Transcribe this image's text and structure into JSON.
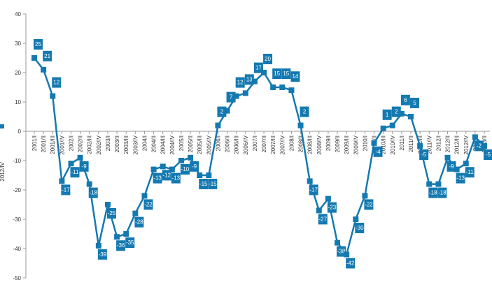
{
  "chart_data": {
    "type": "line",
    "categories": [
      "2001/I",
      "2001/II",
      "2001/III",
      "2001/IV",
      "2002/I",
      "2002/II",
      "2002/III",
      "2002/IV",
      "2003/I",
      "2003/II",
      "2003/III",
      "2003/IV",
      "2004/I",
      "2004/II",
      "2004/III",
      "2004/IV",
      "2005/I",
      "2005/II",
      "2005/III",
      "2005/IV",
      "2006/I",
      "2006/II",
      "2006/III",
      "2006/IV",
      "2007/I",
      "2007/II",
      "2007/III",
      "2007/IV",
      "2008/I",
      "2008/II",
      "2008/III",
      "2008/IV",
      "2009/I",
      "2009/II",
      "2009/III",
      "2009/IV",
      "2010/I",
      "2010/II",
      "2010/III",
      "2010/IV",
      "2011/I",
      "2011/II",
      "2011/III",
      "2011/IV",
      "2012/I",
      "2012/II",
      "2012/III",
      "2012/IV",
      "2013/I",
      "2013/II"
    ],
    "series": [
      {
        "name": "2012/IV",
        "color": "#1479b0",
        "values": [
          25,
          21,
          12,
          -17,
          -11,
          -9,
          -18,
          -39,
          -25,
          -36,
          -35,
          -28,
          -22,
          -13,
          -12,
          -13,
          -10,
          -9,
          -15,
          -15,
          2,
          7,
          12,
          13,
          17,
          20,
          15,
          15,
          14,
          2,
          -17,
          -27,
          -23,
          -38,
          -42,
          -30,
          -22,
          -4,
          1,
          2,
          6,
          5,
          -5,
          -18,
          -18,
          -9,
          -13,
          -11,
          -2,
          -5
        ]
      }
    ],
    "ylim": [
      -50,
      40
    ],
    "yticks": [
      -50,
      -40,
      -30,
      -20,
      -10,
      0,
      10,
      20,
      30,
      40
    ]
  }
}
